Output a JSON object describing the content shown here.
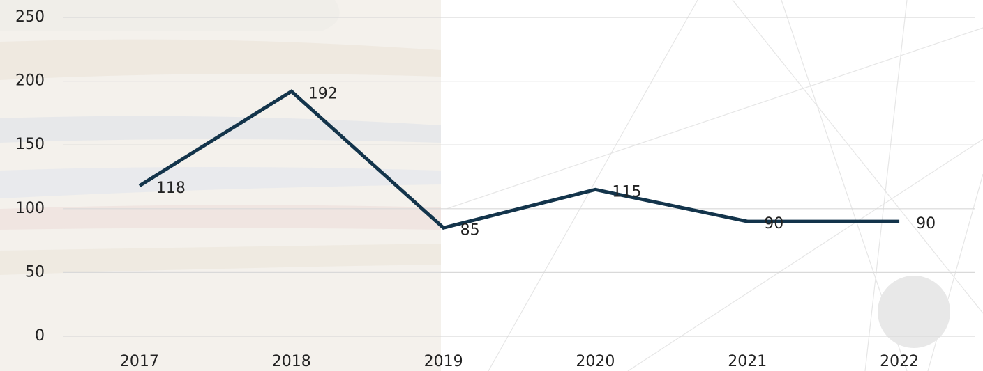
{
  "chart_data": {
    "type": "line",
    "categories": [
      "2017",
      "2018",
      "2019",
      "2020",
      "2021",
      "2022"
    ],
    "values": [
      118,
      192,
      85,
      115,
      90,
      90
    ],
    "color": "#13344b",
    "ylim": [
      0,
      250
    ],
    "yticks": [
      0,
      50,
      100,
      150,
      200,
      250
    ],
    "grid": true
  }
}
